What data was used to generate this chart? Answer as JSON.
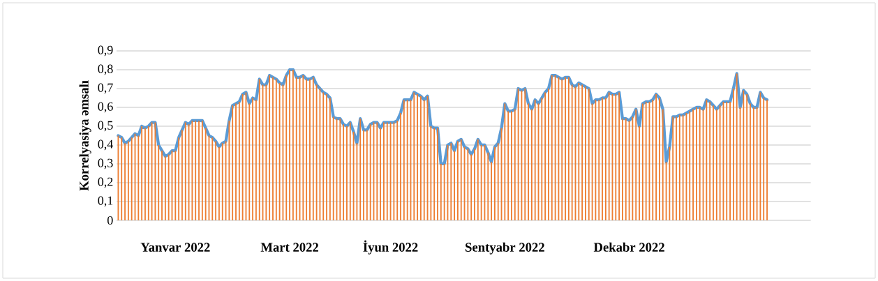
{
  "chart_data": {
    "type": "bar",
    "ylabel": "Korrelyasiya əmsalı",
    "categories": [
      null,
      null,
      null,
      null,
      null,
      null,
      null,
      null,
      null,
      null,
      null,
      null,
      null,
      null,
      null,
      null,
      null,
      "Yanvar 2022",
      null,
      null,
      null,
      null,
      null,
      null,
      null,
      null,
      null,
      null,
      null,
      null,
      null,
      null,
      null,
      null,
      null,
      null,
      null,
      null,
      null,
      null,
      null,
      null,
      null,
      null,
      null,
      null,
      null,
      null,
      null,
      null,
      null,
      "Mart 2022",
      null,
      null,
      null,
      null,
      null,
      null,
      null,
      null,
      null,
      null,
      null,
      null,
      null,
      null,
      null,
      null,
      null,
      null,
      null,
      null,
      null,
      null,
      null,
      null,
      null,
      null,
      null,
      null,
      null,
      "İyun 2022",
      null,
      null,
      null,
      null,
      null,
      null,
      null,
      null,
      null,
      null,
      null,
      null,
      null,
      null,
      null,
      null,
      null,
      null,
      null,
      null,
      null,
      null,
      null,
      null,
      null,
      null,
      null,
      null,
      null,
      null,
      null,
      null,
      null,
      "Sentyabr 2022",
      null,
      null,
      null,
      null,
      null,
      null,
      null,
      null,
      null,
      null,
      null,
      null,
      null,
      null,
      null,
      null,
      null,
      null,
      null,
      null,
      null,
      null,
      null,
      null,
      null,
      null,
      null,
      null,
      null,
      null,
      null,
      null,
      null,
      null,
      null,
      null,
      "Dekabr 2022",
      null,
      null,
      null,
      null,
      null,
      null,
      null,
      null,
      null,
      null,
      null,
      null,
      null,
      null,
      null,
      null,
      null,
      null,
      null,
      null,
      null,
      null,
      null,
      null,
      null,
      null,
      null,
      null,
      null,
      null,
      null,
      null,
      null,
      null,
      null,
      null,
      null,
      null,
      null,
      null,
      null
    ],
    "series": [
      {
        "color": "#ed7d31",
        "values": [
          0.45,
          0.44,
          0.41,
          0.42,
          0.44,
          0.46,
          0.45,
          0.5,
          0.49,
          0.5,
          0.52,
          0.52,
          0.4,
          0.37,
          0.34,
          0.35,
          0.37,
          0.37,
          0.44,
          0.48,
          0.52,
          0.51,
          0.53,
          0.53,
          0.53,
          0.53,
          0.49,
          0.45,
          0.44,
          0.42,
          0.39,
          0.41,
          0.42,
          0.53,
          0.61,
          0.62,
          0.63,
          0.67,
          0.68,
          0.62,
          0.65,
          0.64,
          0.75,
          0.72,
          0.72,
          0.77,
          0.76,
          0.75,
          0.73,
          0.72,
          0.77,
          0.8,
          0.8,
          0.76,
          0.76,
          0.77,
          0.75,
          0.75,
          0.76,
          0.72,
          0.7,
          0.68,
          0.67,
          0.65,
          0.55,
          0.54,
          0.54,
          0.51,
          0.5,
          0.52,
          0.47,
          0.41,
          0.54,
          0.48,
          0.48,
          0.51,
          0.52,
          0.52,
          0.49,
          0.52,
          0.52,
          0.52,
          0.52,
          0.53,
          0.57,
          0.64,
          0.64,
          0.64,
          0.68,
          0.67,
          0.66,
          0.64,
          0.66,
          0.5,
          0.49,
          0.49,
          0.3,
          0.3,
          0.4,
          0.41,
          0.37,
          0.42,
          0.43,
          0.39,
          0.38,
          0.35,
          0.38,
          0.43,
          0.4,
          0.4,
          0.36,
          0.31,
          0.39,
          0.41,
          0.49,
          0.62,
          0.58,
          0.58,
          0.59,
          0.7,
          0.69,
          0.7,
          0.62,
          0.59,
          0.64,
          0.62,
          0.65,
          0.68,
          0.7,
          0.77,
          0.77,
          0.76,
          0.75,
          0.76,
          0.76,
          0.72,
          0.71,
          0.73,
          0.72,
          0.71,
          0.7,
          0.62,
          0.64,
          0.64,
          0.65,
          0.65,
          0.68,
          0.67,
          0.67,
          0.68,
          0.54,
          0.54,
          0.53,
          0.55,
          0.59,
          0.5,
          0.62,
          0.63,
          0.63,
          0.64,
          0.67,
          0.65,
          0.59,
          0.31,
          0.39,
          0.55,
          0.55,
          0.56,
          0.56,
          0.57,
          0.58,
          0.59,
          0.6,
          0.6,
          0.59,
          0.64,
          0.63,
          0.61,
          0.59,
          0.61,
          0.63,
          0.63,
          0.63,
          0.7,
          0.78,
          0.6,
          0.69,
          0.67,
          0.62,
          0.6,
          0.6,
          0.68,
          0.65,
          0.64
        ]
      },
      {
        "type": "line",
        "color": "#5b9bd5",
        "values": [
          0.45,
          0.44,
          0.41,
          0.42,
          0.44,
          0.46,
          0.45,
          0.5,
          0.49,
          0.5,
          0.52,
          0.52,
          0.4,
          0.37,
          0.34,
          0.35,
          0.37,
          0.37,
          0.44,
          0.48,
          0.52,
          0.51,
          0.53,
          0.53,
          0.53,
          0.53,
          0.49,
          0.45,
          0.44,
          0.42,
          0.39,
          0.41,
          0.42,
          0.53,
          0.61,
          0.62,
          0.63,
          0.67,
          0.68,
          0.62,
          0.65,
          0.64,
          0.75,
          0.72,
          0.72,
          0.77,
          0.76,
          0.75,
          0.73,
          0.72,
          0.77,
          0.8,
          0.8,
          0.76,
          0.76,
          0.77,
          0.75,
          0.75,
          0.76,
          0.72,
          0.7,
          0.68,
          0.67,
          0.65,
          0.55,
          0.54,
          0.54,
          0.51,
          0.5,
          0.52,
          0.47,
          0.41,
          0.54,
          0.48,
          0.48,
          0.51,
          0.52,
          0.52,
          0.49,
          0.52,
          0.52,
          0.52,
          0.52,
          0.53,
          0.57,
          0.64,
          0.64,
          0.64,
          0.68,
          0.67,
          0.66,
          0.64,
          0.66,
          0.5,
          0.49,
          0.49,
          0.3,
          0.3,
          0.4,
          0.41,
          0.37,
          0.42,
          0.43,
          0.39,
          0.38,
          0.35,
          0.38,
          0.43,
          0.4,
          0.4,
          0.36,
          0.31,
          0.39,
          0.41,
          0.49,
          0.62,
          0.58,
          0.58,
          0.59,
          0.7,
          0.69,
          0.7,
          0.62,
          0.59,
          0.64,
          0.62,
          0.65,
          0.68,
          0.7,
          0.77,
          0.77,
          0.76,
          0.75,
          0.76,
          0.76,
          0.72,
          0.71,
          0.73,
          0.72,
          0.71,
          0.7,
          0.62,
          0.64,
          0.64,
          0.65,
          0.65,
          0.68,
          0.67,
          0.67,
          0.68,
          0.54,
          0.54,
          0.53,
          0.55,
          0.59,
          0.5,
          0.62,
          0.63,
          0.63,
          0.64,
          0.67,
          0.65,
          0.59,
          0.31,
          0.39,
          0.55,
          0.55,
          0.56,
          0.56,
          0.57,
          0.58,
          0.59,
          0.6,
          0.6,
          0.59,
          0.64,
          0.63,
          0.61,
          0.59,
          0.61,
          0.63,
          0.63,
          0.63,
          0.7,
          0.78,
          0.6,
          0.69,
          0.67,
          0.62,
          0.6,
          0.6,
          0.68,
          0.65,
          0.64
        ]
      }
    ],
    "ylim": [
      0,
      0.9
    ],
    "yticks": [
      0,
      {
        "value": 0.1,
        "label": "0,1"
      },
      {
        "value": 0.2,
        "label": "0,2"
      },
      {
        "value": 0.3,
        "label": "0,3"
      },
      {
        "value": 0.4,
        "label": "0,4"
      },
      {
        "value": 0.5,
        "label": "0,5"
      },
      {
        "value": 0.6,
        "label": "0,6"
      },
      {
        "value": 0.7,
        "label": "0,7"
      },
      {
        "value": 0.8,
        "label": "0,8"
      },
      {
        "value": 0.9,
        "label": "0,9"
      }
    ],
    "grid": "y"
  }
}
